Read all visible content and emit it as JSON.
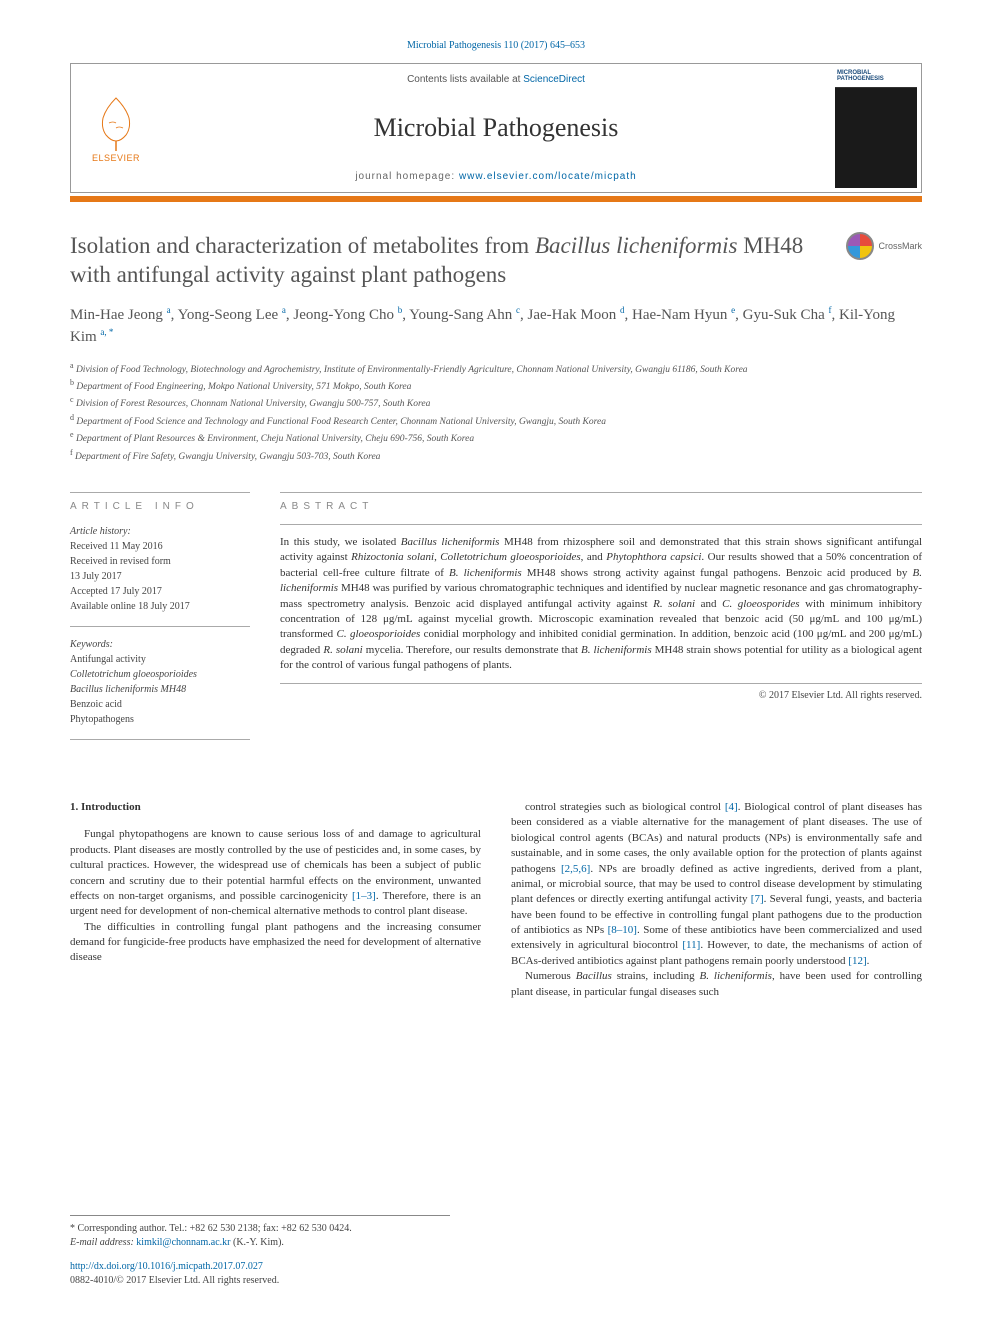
{
  "citation": "Microbial Pathogenesis 110 (2017) 645–653",
  "header": {
    "contents_prefix": "Contents lists available at ",
    "contents_link": "ScienceDirect",
    "journal": "Microbial Pathogenesis",
    "homepage_prefix": "journal homepage: ",
    "homepage_url": "www.elsevier.com/locate/micpath",
    "elsevier": "ELSEVIER",
    "cover_label": "MICROBIAL PATHOGENESIS"
  },
  "crossmark": "CrossMark",
  "title_html": "Isolation and characterization of metabolites from <em>Bacillus licheniformis</em> MH48 with antifungal activity against plant pathogens",
  "authors_html": "Min-Hae Jeong <sup>a</sup>, Yong-Seong Lee <sup>a</sup>, Jeong-Yong Cho <sup>b</sup>, Young-Sang Ahn <sup>c</sup>, Jae-Hak Moon <sup>d</sup>, Hae-Nam Hyun <sup>e</sup>, Gyu-Suk Cha <sup>f</sup>, Kil-Yong Kim <sup>a, *</sup>",
  "affiliations": [
    {
      "sup": "a",
      "text": "Division of Food Technology, Biotechnology and Agrochemistry, Institute of Environmentally-Friendly Agriculture, Chonnam National University, Gwangju 61186, South Korea"
    },
    {
      "sup": "b",
      "text": "Department of Food Engineering, Mokpo National University, 571 Mokpo, South Korea"
    },
    {
      "sup": "c",
      "text": "Division of Forest Resources, Chonnam National University, Gwangju 500-757, South Korea"
    },
    {
      "sup": "d",
      "text": "Department of Food Science and Technology and Functional Food Research Center, Chonnam National University, Gwangju, South Korea"
    },
    {
      "sup": "e",
      "text": "Department of Plant Resources & Environment, Cheju National University, Cheju 690-756, South Korea"
    },
    {
      "sup": "f",
      "text": "Department of Fire Safety, Gwangju University, Gwangju 503-703, South Korea"
    }
  ],
  "article_info": {
    "heading": "ARTICLE INFO",
    "history_label": "Article history:",
    "history": [
      "Received 11 May 2016",
      "Received in revised form",
      "13 July 2017",
      "Accepted 17 July 2017",
      "Available online 18 July 2017"
    ],
    "keywords_label": "Keywords:",
    "keywords": [
      "Antifungal activity",
      "Colletotrichum gloeosporioides",
      "Bacillus licheniformis MH48",
      "Benzoic acid",
      "Phytopathogens"
    ]
  },
  "abstract": {
    "heading": "ABSTRACT",
    "text_html": "In this study, we isolated <em>Bacillus licheniformis</em> MH48 from rhizosphere soil and demonstrated that this strain shows significant antifungal activity against <em>Rhizoctonia solani</em>, <em>Colletotrichum gloeosporioides</em>, and <em>Phytophthora capsici</em>. Our results showed that a 50% concentration of bacterial cell-free culture filtrate of <em>B. licheniformis</em> MH48 shows strong activity against fungal pathogens. Benzoic acid produced by <em>B. licheniformis</em> MH48 was purified by various chromatographic techniques and identified by nuclear magnetic resonance and gas chromatography-mass spectrometry analysis. Benzoic acid displayed antifungal activity against <em>R. solani</em> and <em>C. gloeosporides</em> with minimum inhibitory concentration of 128 μg/mL against mycelial growth. Microscopic examination revealed that benzoic acid (50 μg/mL and 100 μg/mL) transformed <em>C. gloeosporioides</em> conidial morphology and inhibited conidial germination. In addition, benzoic acid (100 μg/mL and 200 μg/mL) degraded <em>R. solani</em> mycelia. Therefore, our results demonstrate that <em>B. licheniformis</em> MH48 strain shows potential for utility as a biological agent for the control of various fungal pathogens of plants.",
    "copyright": "© 2017 Elsevier Ltd. All rights reserved."
  },
  "body": {
    "section1_heading": "1. Introduction",
    "col1_p1": "Fungal phytopathogens are known to cause serious loss of and damage to agricultural products. Plant diseases are mostly controlled by the use of pesticides and, in some cases, by cultural practices. However, the widespread use of chemicals has been a subject of public concern and scrutiny due to their potential harmful effects on the environment, unwanted effects on non-target organisms, and possible carcinogenicity <span class=\"ref-link\">[1–3]</span>. Therefore, there is an urgent need for development of non-chemical alternative methods to control plant disease.",
    "col1_p2": "The difficulties in controlling fungal plant pathogens and the increasing consumer demand for fungicide-free products have emphasized the need for development of alternative disease",
    "col2_p1": "control strategies such as biological control <span class=\"ref-link\">[4]</span>. Biological control of plant diseases has been considered as a viable alternative for the management of plant diseases. The use of biological control agents (BCAs) and natural products (NPs) is environmentally safe and sustainable, and in some cases, the only available option for the protection of plants against pathogens <span class=\"ref-link\">[2,5,6]</span>. NPs are broadly defined as active ingredients, derived from a plant, animal, or microbial source, that may be used to control disease development by stimulating plant defences or directly exerting antifungal activity <span class=\"ref-link\">[7]</span>. Several fungi, yeasts, and bacteria have been found to be effective in controlling fungal plant pathogens due to the production of antibiotics as NPs <span class=\"ref-link\">[8–10]</span>. Some of these antibiotics have been commercialized and used extensively in agricultural biocontrol <span class=\"ref-link\">[11]</span>. However, to date, the mechanisms of action of BCAs-derived antibiotics against plant pathogens remain poorly understood <span class=\"ref-link\">[12]</span>.",
    "col2_p2_html": "Numerous <em>Bacillus</em> strains, including <em>B. licheniformis</em>, have been used for controlling plant disease, in particular fungal diseases such"
  },
  "footer": {
    "corr": "* Corresponding author. Tel.: +82 62 530 2138; fax: +82 62 530 0424.",
    "email_label": "E-mail address: ",
    "email": "kimkil@chonnam.ac.kr",
    "email_suffix": " (K.-Y. Kim).",
    "doi": "http://dx.doi.org/10.1016/j.micpath.2017.07.027",
    "issn": "0882-4010/© 2017 Elsevier Ltd. All rights reserved."
  },
  "colors": {
    "link": "#0066a6",
    "orange": "#e67817",
    "text": "#333333",
    "border": "#999999"
  }
}
